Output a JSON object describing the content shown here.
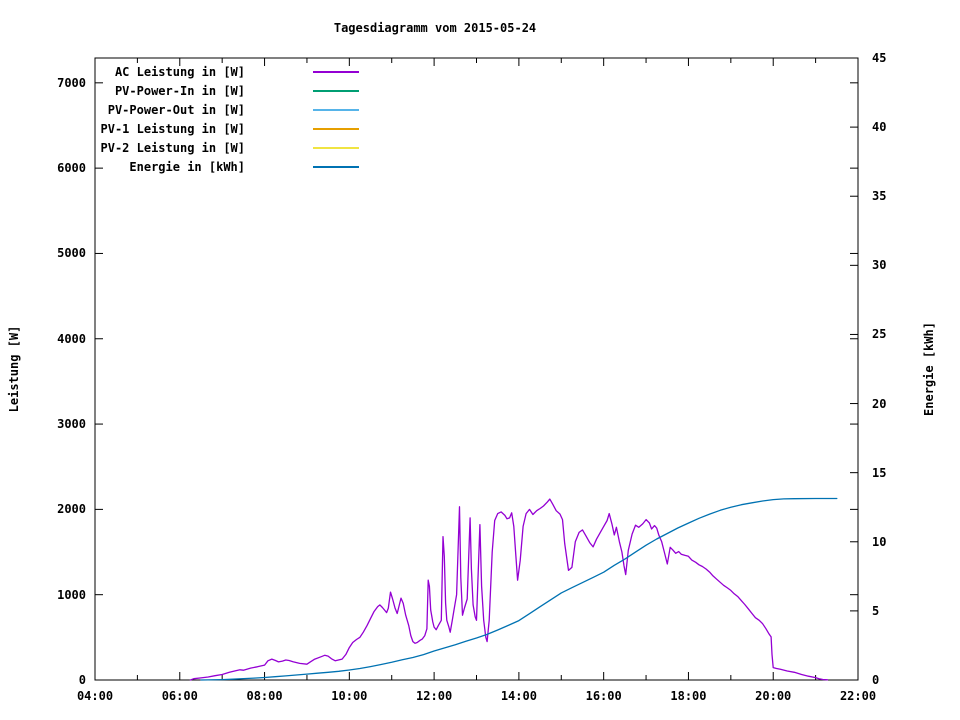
{
  "title": "Tagesdiagramm vom 2015-05-24",
  "y_left_axis_label": "Leistung [W]",
  "y_right_axis_label": "Energie [kWh]",
  "axes": {
    "x": {
      "hours": [
        4,
        6,
        8,
        10,
        12,
        14,
        16,
        18,
        20,
        22
      ],
      "labels": [
        "04:00",
        "06:00",
        "08:00",
        "10:00",
        "12:00",
        "14:00",
        "16:00",
        "18:00",
        "20:00",
        "22:00"
      ],
      "minor_step_hours": 1
    },
    "y_left": {
      "values": [
        0,
        1000,
        2000,
        3000,
        4000,
        5000,
        6000,
        7000
      ],
      "labels": [
        "0",
        "1000",
        "2000",
        "3000",
        "4000",
        "5000",
        "6000",
        "7000"
      ]
    },
    "y_right": {
      "values": [
        0,
        5,
        10,
        15,
        20,
        25,
        30,
        35,
        40,
        45
      ],
      "labels": [
        "0",
        "5",
        "10",
        "15",
        "20",
        "25",
        "30",
        "35",
        "40",
        "45"
      ]
    }
  },
  "legend": [
    {
      "label": "AC Leistung in [W]",
      "color": "#9400d3"
    },
    {
      "label": "PV-Power-In in [W]",
      "color": "#009e73"
    },
    {
      "label": "PV-Power-Out in [W]",
      "color": "#56b4e9"
    },
    {
      "label": "PV-1 Leistung in [W]",
      "color": "#e69f00"
    },
    {
      "label": "PV-2 Leistung in [W]",
      "color": "#f0e442"
    },
    {
      "label": "Energie in [kWh]",
      "color": "#0072b2"
    }
  ],
  "chart_data": {
    "type": "line",
    "title": "Tagesdiagramm vom 2015-05-24",
    "x_unit": "decimal_hour",
    "x_range_hours": [
      4,
      22
    ],
    "y_left_label": "Leistung [W]",
    "y_left_range": [
      0,
      7291
    ],
    "y_right_label": "Energie [kWh]",
    "y_right_range": [
      0,
      45
    ],
    "grid": false,
    "legend_position": "inside-top-left",
    "series": [
      {
        "name": "AC Leistung in [W]",
        "color": "#9400d3",
        "y_axis": "left",
        "unit": "W",
        "points": [
          [
            6.25,
            0
          ],
          [
            6.33,
            15
          ],
          [
            6.5,
            25
          ],
          [
            6.67,
            35
          ],
          [
            6.83,
            50
          ],
          [
            7.0,
            65
          ],
          [
            7.17,
            90
          ],
          [
            7.33,
            110
          ],
          [
            7.42,
            120
          ],
          [
            7.5,
            115
          ],
          [
            7.67,
            140
          ],
          [
            7.83,
            155
          ],
          [
            8.0,
            175
          ],
          [
            8.08,
            225
          ],
          [
            8.17,
            245
          ],
          [
            8.25,
            230
          ],
          [
            8.33,
            212
          ],
          [
            8.42,
            222
          ],
          [
            8.5,
            235
          ],
          [
            8.58,
            228
          ],
          [
            8.67,
            215
          ],
          [
            8.83,
            195
          ],
          [
            9.0,
            185
          ],
          [
            9.08,
            212
          ],
          [
            9.17,
            242
          ],
          [
            9.33,
            272
          ],
          [
            9.42,
            290
          ],
          [
            9.5,
            280
          ],
          [
            9.58,
            248
          ],
          [
            9.67,
            225
          ],
          [
            9.83,
            245
          ],
          [
            9.92,
            300
          ],
          [
            10.0,
            380
          ],
          [
            10.08,
            440
          ],
          [
            10.17,
            475
          ],
          [
            10.25,
            500
          ],
          [
            10.33,
            560
          ],
          [
            10.42,
            640
          ],
          [
            10.5,
            720
          ],
          [
            10.58,
            800
          ],
          [
            10.67,
            860
          ],
          [
            10.72,
            880
          ],
          [
            10.78,
            850
          ],
          [
            10.83,
            820
          ],
          [
            10.88,
            790
          ],
          [
            10.92,
            840
          ],
          [
            10.97,
            1030
          ],
          [
            11.02,
            950
          ],
          [
            11.08,
            840
          ],
          [
            11.13,
            780
          ],
          [
            11.17,
            860
          ],
          [
            11.22,
            960
          ],
          [
            11.27,
            900
          ],
          [
            11.33,
            760
          ],
          [
            11.4,
            640
          ],
          [
            11.45,
            520
          ],
          [
            11.5,
            450
          ],
          [
            11.55,
            430
          ],
          [
            11.6,
            440
          ],
          [
            11.67,
            465
          ],
          [
            11.72,
            480
          ],
          [
            11.78,
            520
          ],
          [
            11.83,
            600
          ],
          [
            11.86,
            1170
          ],
          [
            11.89,
            1100
          ],
          [
            11.92,
            820
          ],
          [
            11.97,
            680
          ],
          [
            12.0,
            620
          ],
          [
            12.05,
            590
          ],
          [
            12.1,
            640
          ],
          [
            12.17,
            700
          ],
          [
            12.21,
            1680
          ],
          [
            12.24,
            1450
          ],
          [
            12.27,
            900
          ],
          [
            12.3,
            700
          ],
          [
            12.35,
            620
          ],
          [
            12.38,
            560
          ],
          [
            12.43,
            700
          ],
          [
            12.47,
            820
          ],
          [
            12.53,
            1000
          ],
          [
            12.6,
            2030
          ],
          [
            12.63,
            1200
          ],
          [
            12.67,
            760
          ],
          [
            12.72,
            850
          ],
          [
            12.78,
            950
          ],
          [
            12.85,
            1900
          ],
          [
            12.88,
            1300
          ],
          [
            12.92,
            880
          ],
          [
            12.97,
            740
          ],
          [
            13.0,
            700
          ],
          [
            13.08,
            1820
          ],
          [
            13.12,
            1100
          ],
          [
            13.17,
            700
          ],
          [
            13.22,
            500
          ],
          [
            13.25,
            450
          ],
          [
            13.3,
            700
          ],
          [
            13.37,
            1500
          ],
          [
            13.43,
            1870
          ],
          [
            13.5,
            1950
          ],
          [
            13.58,
            1970
          ],
          [
            13.67,
            1930
          ],
          [
            13.72,
            1890
          ],
          [
            13.78,
            1900
          ],
          [
            13.83,
            1960
          ],
          [
            13.88,
            1800
          ],
          [
            13.93,
            1450
          ],
          [
            13.97,
            1170
          ],
          [
            14.03,
            1400
          ],
          [
            14.1,
            1800
          ],
          [
            14.17,
            1950
          ],
          [
            14.25,
            2000
          ],
          [
            14.33,
            1940
          ],
          [
            14.42,
            1985
          ],
          [
            14.5,
            2010
          ],
          [
            14.58,
            2040
          ],
          [
            14.67,
            2085
          ],
          [
            14.73,
            2120
          ],
          [
            14.8,
            2060
          ],
          [
            14.88,
            1985
          ],
          [
            14.97,
            1945
          ],
          [
            15.03,
            1880
          ],
          [
            15.08,
            1600
          ],
          [
            15.17,
            1285
          ],
          [
            15.25,
            1320
          ],
          [
            15.33,
            1620
          ],
          [
            15.42,
            1730
          ],
          [
            15.5,
            1760
          ],
          [
            15.58,
            1690
          ],
          [
            15.67,
            1610
          ],
          [
            15.75,
            1560
          ],
          [
            15.83,
            1650
          ],
          [
            15.92,
            1730
          ],
          [
            16.0,
            1800
          ],
          [
            16.08,
            1870
          ],
          [
            16.13,
            1950
          ],
          [
            16.2,
            1820
          ],
          [
            16.25,
            1700
          ],
          [
            16.3,
            1790
          ],
          [
            16.37,
            1620
          ],
          [
            16.43,
            1500
          ],
          [
            16.48,
            1340
          ],
          [
            16.52,
            1235
          ],
          [
            16.58,
            1520
          ],
          [
            16.67,
            1710
          ],
          [
            16.75,
            1815
          ],
          [
            16.83,
            1790
          ],
          [
            16.92,
            1830
          ],
          [
            17.0,
            1880
          ],
          [
            17.08,
            1840
          ],
          [
            17.13,
            1770
          ],
          [
            17.2,
            1810
          ],
          [
            17.25,
            1780
          ],
          [
            17.3,
            1700
          ],
          [
            17.37,
            1620
          ],
          [
            17.43,
            1500
          ],
          [
            17.5,
            1360
          ],
          [
            17.57,
            1555
          ],
          [
            17.63,
            1525
          ],
          [
            17.7,
            1485
          ],
          [
            17.77,
            1505
          ],
          [
            17.83,
            1475
          ],
          [
            17.92,
            1460
          ],
          [
            18.0,
            1450
          ],
          [
            18.08,
            1405
          ],
          [
            18.17,
            1380
          ],
          [
            18.25,
            1350
          ],
          [
            18.33,
            1330
          ],
          [
            18.42,
            1300
          ],
          [
            18.5,
            1265
          ],
          [
            18.58,
            1220
          ],
          [
            18.67,
            1180
          ],
          [
            18.75,
            1145
          ],
          [
            18.83,
            1110
          ],
          [
            18.92,
            1080
          ],
          [
            19.0,
            1050
          ],
          [
            19.08,
            1010
          ],
          [
            19.17,
            975
          ],
          [
            19.25,
            930
          ],
          [
            19.33,
            885
          ],
          [
            19.42,
            830
          ],
          [
            19.5,
            780
          ],
          [
            19.58,
            730
          ],
          [
            19.67,
            700
          ],
          [
            19.75,
            660
          ],
          [
            19.83,
            600
          ],
          [
            19.9,
            540
          ],
          [
            19.95,
            505
          ],
          [
            19.97,
            300
          ],
          [
            20.0,
            145
          ],
          [
            20.08,
            135
          ],
          [
            20.17,
            125
          ],
          [
            20.33,
            105
          ],
          [
            20.5,
            90
          ],
          [
            20.67,
            65
          ],
          [
            20.83,
            45
          ],
          [
            21.0,
            28
          ],
          [
            21.08,
            15
          ],
          [
            21.17,
            6
          ],
          [
            21.28,
            2
          ]
        ]
      },
      {
        "name": "PV-Power-In in [W]",
        "color": "#009e73",
        "y_axis": "left",
        "unit": "W",
        "points": []
      },
      {
        "name": "PV-Power-Out in [W]",
        "color": "#56b4e9",
        "y_axis": "left",
        "unit": "W",
        "points": []
      },
      {
        "name": "PV-1 Leistung in [W]",
        "color": "#e69f00",
        "y_axis": "left",
        "unit": "W",
        "points": []
      },
      {
        "name": "PV-2 Leistung in [W]",
        "color": "#f0e442",
        "y_axis": "left",
        "unit": "W",
        "points": []
      },
      {
        "name": "Energie in [kWh]",
        "color": "#0072b2",
        "y_axis": "right",
        "unit": "kWh",
        "points": [
          [
            6.5,
            0
          ],
          [
            7.0,
            0.03
          ],
          [
            7.25,
            0.06
          ],
          [
            7.5,
            0.1
          ],
          [
            7.75,
            0.14
          ],
          [
            8.0,
            0.18
          ],
          [
            8.25,
            0.24
          ],
          [
            8.5,
            0.3
          ],
          [
            8.75,
            0.36
          ],
          [
            9.0,
            0.43
          ],
          [
            9.25,
            0.49
          ],
          [
            9.5,
            0.56
          ],
          [
            9.75,
            0.63
          ],
          [
            10.0,
            0.72
          ],
          [
            10.25,
            0.83
          ],
          [
            10.5,
            0.97
          ],
          [
            10.75,
            1.12
          ],
          [
            11.0,
            1.28
          ],
          [
            11.25,
            1.46
          ],
          [
            11.5,
            1.63
          ],
          [
            11.75,
            1.84
          ],
          [
            12.0,
            2.1
          ],
          [
            12.25,
            2.32
          ],
          [
            12.5,
            2.55
          ],
          [
            12.75,
            2.8
          ],
          [
            13.0,
            3.04
          ],
          [
            13.25,
            3.3
          ],
          [
            13.5,
            3.62
          ],
          [
            13.75,
            3.95
          ],
          [
            14.0,
            4.3
          ],
          [
            14.25,
            4.8
          ],
          [
            14.5,
            5.3
          ],
          [
            14.75,
            5.8
          ],
          [
            15.0,
            6.3
          ],
          [
            15.25,
            6.68
          ],
          [
            15.5,
            7.05
          ],
          [
            15.75,
            7.42
          ],
          [
            16.0,
            7.8
          ],
          [
            16.25,
            8.3
          ],
          [
            16.5,
            8.75
          ],
          [
            16.75,
            9.25
          ],
          [
            17.0,
            9.75
          ],
          [
            17.25,
            10.2
          ],
          [
            17.5,
            10.6
          ],
          [
            17.75,
            11.0
          ],
          [
            18.0,
            11.35
          ],
          [
            18.25,
            11.7
          ],
          [
            18.5,
            12.0
          ],
          [
            18.75,
            12.28
          ],
          [
            19.0,
            12.5
          ],
          [
            19.25,
            12.68
          ],
          [
            19.5,
            12.82
          ],
          [
            19.75,
            12.95
          ],
          [
            20.0,
            13.05
          ],
          [
            20.25,
            13.1
          ],
          [
            20.5,
            13.12
          ],
          [
            21.0,
            13.13
          ],
          [
            21.5,
            13.13
          ]
        ]
      }
    ]
  }
}
